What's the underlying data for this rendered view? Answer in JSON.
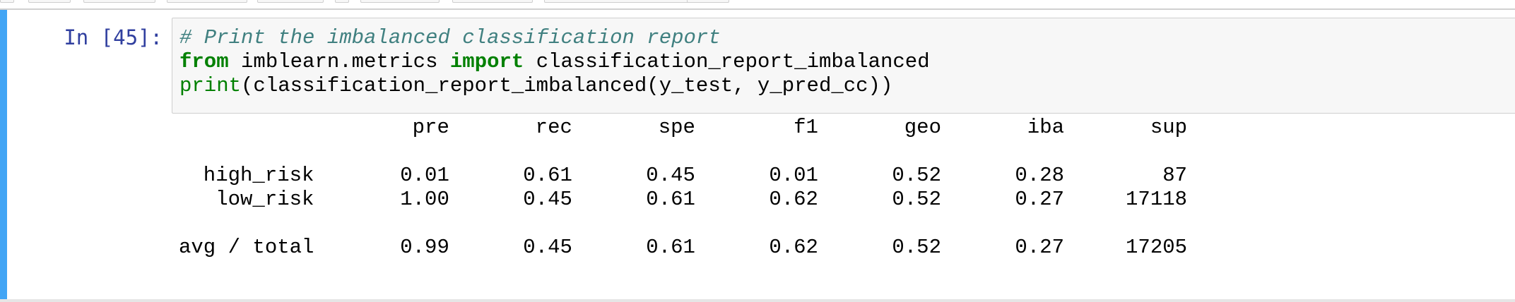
{
  "cell": {
    "prompt": "In [45]:",
    "code_lines": [
      [
        {
          "cls": "tok-comment",
          "text": "# Print the imbalanced classification report"
        }
      ],
      [
        {
          "cls": "tok-keyword",
          "text": "from"
        },
        {
          "cls": "tok-plain",
          "text": " imblearn.metrics "
        },
        {
          "cls": "tok-keyword",
          "text": "import"
        },
        {
          "cls": "tok-plain",
          "text": " classification_report_imbalanced"
        }
      ],
      [
        {
          "cls": "tok-builtin",
          "text": "print"
        },
        {
          "cls": "tok-plain",
          "text": "(classification_report_imbalanced(y_test, y_pred_cc))"
        }
      ]
    ],
    "output_text": "                   pre       rec       spe        f1       geo       iba       sup\n\n  high_risk       0.01      0.61      0.45      0.01      0.52      0.28        87\n   low_risk       1.00      0.45      0.61      0.62      0.52      0.27     17118\n\navg / total       0.99      0.45      0.61      0.62      0.52      0.27     17205"
  },
  "colors": {
    "cell_bar": "#42a5f5",
    "prompt": "#303f9f",
    "comment": "#408080",
    "keyword": "#008000"
  }
}
